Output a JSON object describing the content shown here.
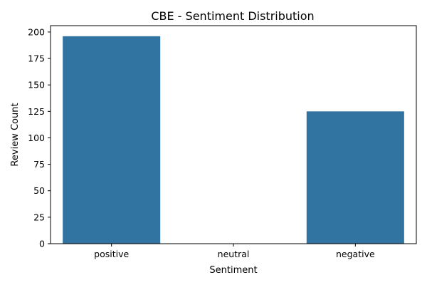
{
  "chart_data": {
    "type": "bar",
    "title": "CBE - Sentiment Distribution",
    "xlabel": "Sentiment",
    "ylabel": "Review Count",
    "categories": [
      "positive",
      "neutral",
      "negative"
    ],
    "values": [
      196,
      0,
      125
    ],
    "ylim": [
      0,
      206
    ],
    "yticks": [
      0,
      25,
      50,
      75,
      100,
      125,
      150,
      175,
      200
    ],
    "grid": false,
    "legend": "none",
    "bar_color": "#3274a1"
  }
}
